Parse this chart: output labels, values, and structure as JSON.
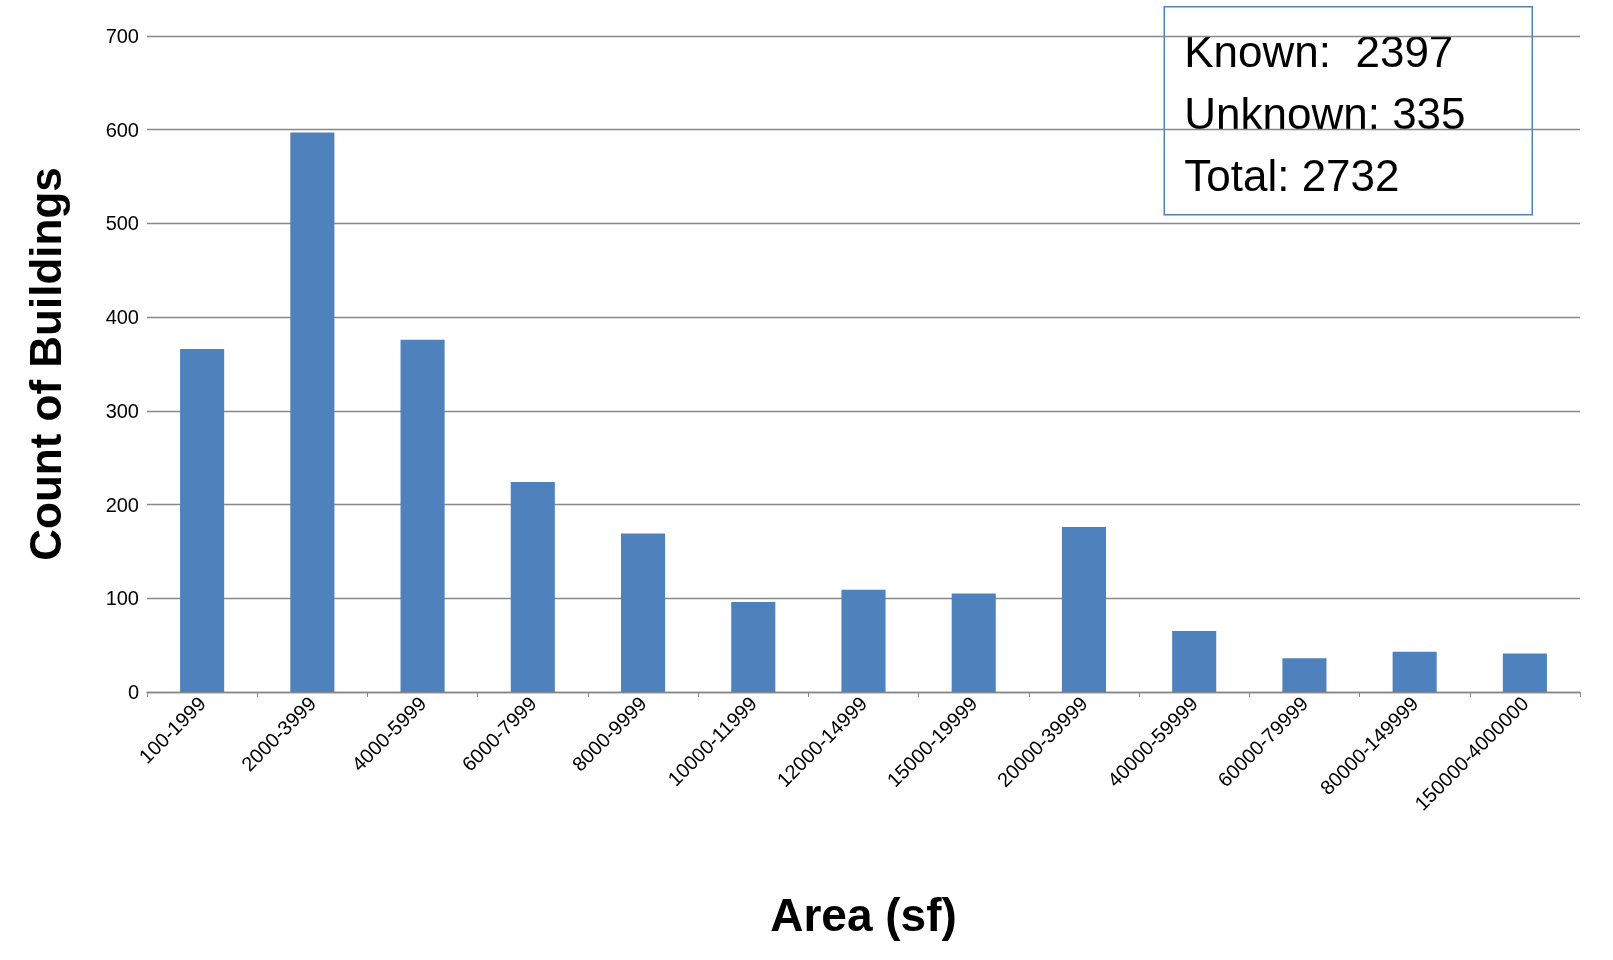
{
  "chart_data": {
    "type": "bar",
    "xlabel": "Area (sf)",
    "ylabel": "Count of Buildings",
    "categories": [
      "100-1999",
      "2000-3999",
      "4000-5999",
      "6000-7999",
      "8000-9999",
      "10000-11999",
      "12000-14999",
      "15000-19999",
      "20000-39999",
      "40000-59999",
      "60000-79999",
      "80000-149999",
      "150000-4000000"
    ],
    "values": [
      366,
      597,
      376,
      224,
      169,
      96,
      109,
      105,
      176,
      65,
      36,
      43,
      41
    ],
    "color": "#4f81bd",
    "ylim": [
      0,
      700
    ],
    "yticks": [
      0,
      100,
      200,
      300,
      400,
      500,
      600,
      700
    ],
    "grid": "y",
    "annotations": [
      "Known:  2397",
      "Unknown: 335",
      "Total: 2732"
    ]
  }
}
